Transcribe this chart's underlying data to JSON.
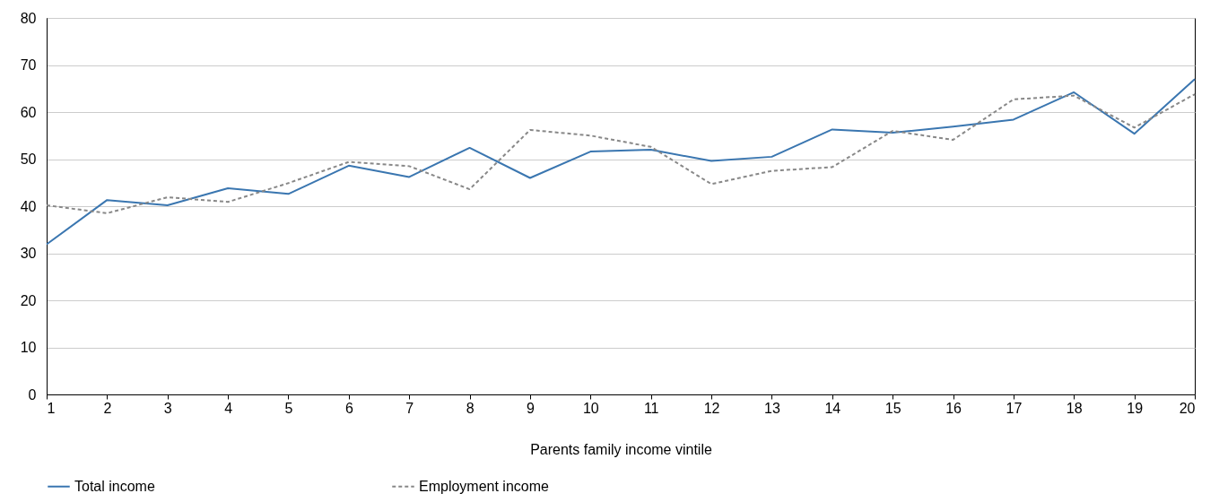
{
  "chart_data": {
    "type": "line",
    "xlabel": "Parents family income vintile",
    "x": [
      1,
      2,
      3,
      4,
      5,
      6,
      7,
      8,
      9,
      10,
      11,
      12,
      13,
      14,
      15,
      16,
      17,
      18,
      19,
      20
    ],
    "series": [
      {
        "name": "Total income",
        "color": "#3a76b0",
        "line_style": "solid",
        "values": [
          31.9,
          41.3,
          40.2,
          43.8,
          42.6,
          48.6,
          46.2,
          52.4,
          46.0,
          51.6,
          52.0,
          49.6,
          50.5,
          56.3,
          55.6,
          56.9,
          58.4,
          64.2,
          55.4,
          67.0
        ]
      },
      {
        "name": "Employment income",
        "color": "#888888",
        "line_style": "dashed",
        "values": [
          40.2,
          38.5,
          41.9,
          40.9,
          44.9,
          49.4,
          48.5,
          43.6,
          56.2,
          55.0,
          52.6,
          44.7,
          47.5,
          48.3,
          56.0,
          54.1,
          62.7,
          63.5,
          56.7,
          63.8
        ]
      }
    ],
    "xlim": [
      1,
      20
    ],
    "xticks": [
      1,
      2,
      3,
      4,
      5,
      6,
      7,
      8,
      9,
      10,
      11,
      12,
      13,
      14,
      15,
      16,
      17,
      18,
      19,
      20
    ],
    "ylim": [
      0,
      80
    ],
    "yticks": [
      0,
      10,
      20,
      30,
      40,
      50,
      60,
      70,
      80
    ],
    "grid": "y",
    "legend": "bottom"
  }
}
